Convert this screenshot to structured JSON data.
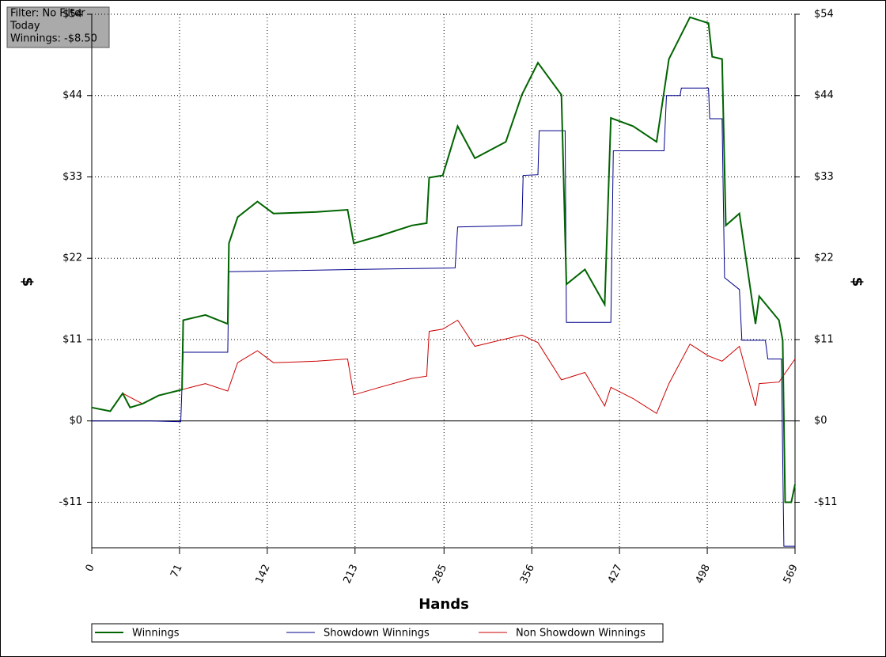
{
  "chart_data": {
    "type": "line",
    "annotations": [
      "Filter: No Filter",
      "Today",
      "Winnings: -$8.50"
    ],
    "x_label": "Hands",
    "y_label": "$",
    "xlim": [
      0,
      569
    ],
    "xticks": [
      0,
      71,
      142,
      213,
      285,
      356,
      427,
      498,
      569
    ],
    "ylim": [
      -17,
      54.5
    ],
    "yticks": [
      {
        "value": -10.9,
        "label": "-$11"
      },
      {
        "value": 0,
        "label": "$0"
      },
      {
        "value": 10.9,
        "label": "$11"
      },
      {
        "value": 21.8,
        "label": "$22"
      },
      {
        "value": 32.7,
        "label": "$33"
      },
      {
        "value": 43.6,
        "label": "$44"
      },
      {
        "value": 54.5,
        "label": "$54"
      }
    ],
    "grid": true,
    "legend": "bottom",
    "series": [
      {
        "name": "Winnings",
        "color": "#006400",
        "x": [
          0,
          15,
          25,
          31,
          41,
          54,
          73,
          74,
          92,
          110,
          111,
          118,
          134,
          147,
          182,
          207,
          212,
          233,
          259,
          271,
          273,
          284,
          296,
          310,
          335,
          348,
          361,
          380,
          384,
          399,
          415,
          420,
          438,
          457,
          467,
          484,
          499,
          502,
          510,
          513,
          524,
          537,
          540,
          556,
          559,
          561,
          566,
          569
        ],
        "values": [
          1.8,
          1.3,
          3.7,
          1.8,
          2.3,
          3.4,
          4.2,
          13.5,
          14.2,
          13,
          23.8,
          27.3,
          29.4,
          27.8,
          28,
          28.3,
          23.8,
          24.8,
          26.2,
          26.5,
          32.6,
          32.9,
          39.5,
          35.2,
          37.4,
          43.7,
          48,
          43.7,
          18.3,
          20.3,
          15.6,
          40.6,
          39.5,
          37.4,
          48.5,
          54.1,
          53.3,
          48.8,
          48.5,
          26.2,
          27.8,
          13,
          16.7,
          13.5,
          10.8,
          -10.9,
          -10.9,
          -8.5
        ]
      },
      {
        "name": "Showdown Winnings",
        "color": "#00008b",
        "x": [
          0,
          47,
          72,
          74,
          110,
          111,
          214,
          294,
          296,
          348,
          349,
          361,
          362,
          383,
          384,
          420,
          422,
          463,
          465,
          476,
          477,
          499,
          500,
          510,
          512,
          524,
          526,
          545,
          547,
          558,
          560,
          569
        ],
        "values": [
          0,
          0,
          -0.1,
          9.2,
          9.2,
          20,
          20.3,
          20.5,
          26,
          26.2,
          32.9,
          33,
          38.9,
          38.9,
          13.2,
          13.2,
          36.2,
          36.2,
          43.6,
          43.6,
          44.6,
          44.6,
          40.5,
          40.5,
          19.2,
          17.6,
          10.8,
          10.8,
          8.3,
          8.3,
          -16.8,
          -16.8
        ]
      },
      {
        "name": "Non Showdown Winnings",
        "color": "#cc0000",
        "x": [
          0,
          15,
          25,
          41,
          54,
          73,
          92,
          110,
          118,
          134,
          147,
          182,
          207,
          212,
          233,
          259,
          271,
          273,
          284,
          296,
          310,
          335,
          348,
          361,
          380,
          399,
          415,
          420,
          438,
          457,
          467,
          484,
          499,
          510,
          524,
          537,
          540,
          556,
          569
        ],
        "values": [
          1.8,
          1.3,
          3.7,
          2.3,
          3.4,
          4.2,
          5,
          4,
          7.8,
          9.4,
          7.8,
          8,
          8.3,
          3.5,
          4.5,
          5.7,
          6,
          12,
          12.3,
          13.5,
          10,
          11,
          11.5,
          10.5,
          5.5,
          6.5,
          2,
          4.5,
          3,
          1,
          5,
          10.3,
          8.7,
          8,
          10,
          2,
          5,
          5.2,
          8.3
        ]
      }
    ]
  }
}
